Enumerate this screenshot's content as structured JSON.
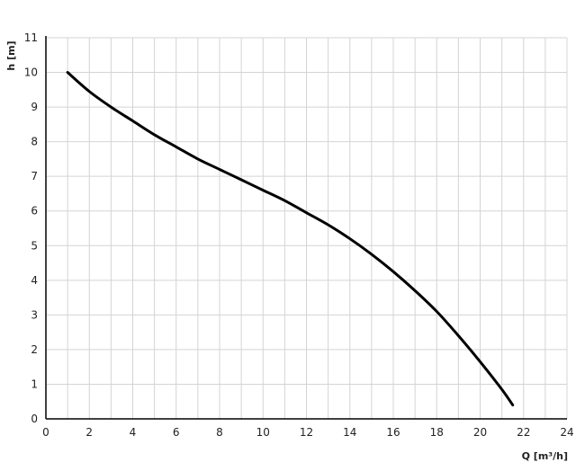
{
  "chart_data": {
    "type": "line",
    "title": "",
    "xlabel": "Q [m³/h]",
    "ylabel": "h [m]",
    "xlim": [
      0,
      24
    ],
    "ylim": [
      0,
      11
    ],
    "xticks": [
      0,
      2,
      4,
      6,
      8,
      10,
      12,
      14,
      16,
      18,
      20,
      22,
      24
    ],
    "yticks": [
      0,
      1,
      2,
      3,
      4,
      5,
      6,
      7,
      8,
      9,
      10,
      11
    ],
    "grid": true,
    "grid_x_step": 1,
    "grid_y_step": 1,
    "series": [
      {
        "color": "#000000",
        "x": [
          1,
          2,
          3,
          4,
          5,
          6,
          7,
          8,
          9,
          10,
          11,
          12,
          13,
          14,
          15,
          16,
          17,
          18,
          19,
          20,
          21,
          21.5
        ],
        "y": [
          10,
          9.45,
          9.0,
          8.6,
          8.2,
          7.85,
          7.5,
          7.2,
          6.9,
          6.6,
          6.3,
          5.95,
          5.6,
          5.2,
          4.75,
          4.25,
          3.7,
          3.1,
          2.4,
          1.65,
          0.85,
          0.4
        ]
      }
    ],
    "colors": {
      "grid": "#d4d4d4",
      "axis": "#000000",
      "line": "#000000"
    }
  }
}
